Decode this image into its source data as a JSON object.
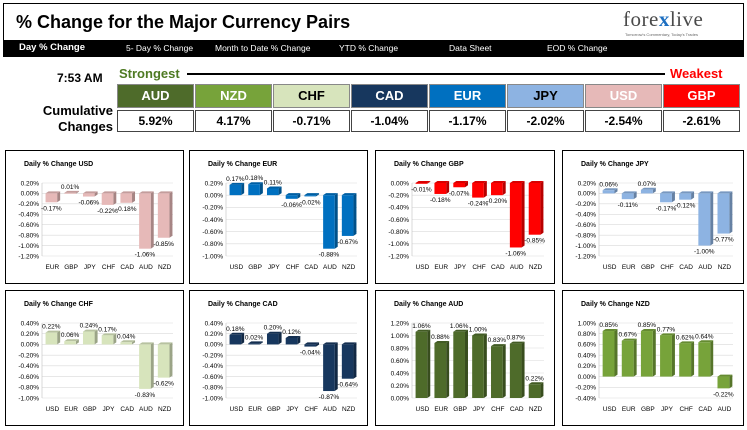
{
  "header": {
    "title": "% Change for the Major Currency Pairs",
    "logo": {
      "text_a": "fore",
      "text_x": "x",
      "text_b": "live",
      "tagline": "Tomorrow's Commentary, Today's Trades"
    }
  },
  "tabs": [
    {
      "label": "Day % Change",
      "active": true
    },
    {
      "label": "5- Day % Change"
    },
    {
      "label": "Month to Date % Change"
    },
    {
      "label": "YTD % Change"
    },
    {
      "label": "Data Sheet"
    },
    {
      "label": "EOD % Change"
    }
  ],
  "summary": {
    "time": "7:53 AM",
    "strongest_label": "Strongest",
    "weakest_label": "Weakest",
    "cumulative_line1": "Cumulative",
    "cumulative_line2": "Changes",
    "currencies": [
      {
        "code": "AUD",
        "value": "5.92%",
        "bg": "#4e6b2a",
        "fg": "#ffffff"
      },
      {
        "code": "NZD",
        "value": "4.17%",
        "bg": "#77a33a",
        "fg": "#ffffff"
      },
      {
        "code": "CHF",
        "value": "-0.71%",
        "bg": "#d7e4bc",
        "fg": "#000000"
      },
      {
        "code": "CAD",
        "value": "-1.04%",
        "bg": "#17375e",
        "fg": "#ffffff"
      },
      {
        "code": "EUR",
        "value": "-1.17%",
        "bg": "#0070c0",
        "fg": "#ffffff"
      },
      {
        "code": "JPY",
        "value": "-2.02%",
        "bg": "#8db3e2",
        "fg": "#000000"
      },
      {
        "code": "USD",
        "value": "-2.54%",
        "bg": "#e6b9b8",
        "fg": "#ffffff"
      },
      {
        "code": "GBP",
        "value": "-2.61%",
        "bg": "#ff0000",
        "fg": "#ffffff"
      }
    ]
  },
  "chart_data": [
    {
      "type": "bar",
      "title": "Daily % Change USD",
      "color": "#e6b9b8",
      "categories": [
        "EUR",
        "GBP",
        "JPY",
        "CHF",
        "CAD",
        "AUD",
        "NZD"
      ],
      "values": [
        -0.17,
        0.01,
        -0.06,
        -0.22,
        -0.18,
        -1.06,
        -0.85
      ],
      "labels": [
        "-0.17%",
        "0.01%",
        "-0.06%",
        "-0.22%",
        "-0.18%",
        "-1.06%",
        "-0.85%"
      ],
      "ticks": [
        "0.20%",
        "0.00%",
        "-0.20%",
        "-0.40%",
        "-0.60%",
        "-0.80%",
        "-1.00%",
        "-1.20%"
      ],
      "ylim": [
        -1.2,
        0.2
      ]
    },
    {
      "type": "bar",
      "title": "Daily % Change EUR",
      "color": "#0070c0",
      "categories": [
        "USD",
        "GBP",
        "JPY",
        "CHF",
        "CAD",
        "AUD",
        "NZD"
      ],
      "values": [
        0.17,
        0.18,
        0.11,
        -0.06,
        -0.02,
        -0.88,
        -0.67
      ],
      "labels": [
        "0.17%",
        "0.18%",
        "0.11%",
        "-0.06%",
        "-0.02%",
        "-0.88%",
        "-0.67%"
      ],
      "ticks": [
        "0.20%",
        "0.00%",
        "-0.20%",
        "-0.40%",
        "-0.60%",
        "-0.80%",
        "-1.00%"
      ],
      "ylim": [
        -1.0,
        0.2
      ]
    },
    {
      "type": "bar",
      "title": "Daily % Change GBP",
      "color": "#ff0000",
      "categories": [
        "USD",
        "EUR",
        "JPY",
        "CHF",
        "CAD",
        "AUD",
        "NZD"
      ],
      "values": [
        -0.01,
        -0.18,
        -0.07,
        -0.24,
        -0.2,
        -1.06,
        -0.85
      ],
      "labels": [
        "-0.01%",
        "-0.18%",
        "-0.07%",
        "-0.24%",
        "-0.20%",
        "-1.06%",
        "-0.85%"
      ],
      "ticks": [
        "0.00%",
        "-0.20%",
        "-0.40%",
        "-0.60%",
        "-0.80%",
        "-1.00%",
        "-1.20%"
      ],
      "ylim": [
        -1.2,
        0.0
      ]
    },
    {
      "type": "bar",
      "title": "Daily % Change JPY",
      "color": "#8db3e2",
      "categories": [
        "USD",
        "EUR",
        "GBP",
        "CHF",
        "CAD",
        "AUD",
        "NZD"
      ],
      "values": [
        0.06,
        -0.11,
        0.07,
        -0.17,
        -0.12,
        -1.0,
        -0.77
      ],
      "labels": [
        "0.06%",
        "-0.11%",
        "0.07%",
        "-0.17%",
        "-0.12%",
        "-1.00%",
        "-0.77%"
      ],
      "ticks": [
        "0.20%",
        "0.00%",
        "-0.20%",
        "-0.40%",
        "-0.60%",
        "-0.80%",
        "-1.00%",
        "-1.20%"
      ],
      "ylim": [
        -1.2,
        0.2
      ]
    },
    {
      "type": "bar",
      "title": "Daily % Change CHF",
      "color": "#d7e4bc",
      "categories": [
        "USD",
        "EUR",
        "GBP",
        "JPY",
        "CAD",
        "AUD",
        "NZD"
      ],
      "values": [
        0.22,
        0.06,
        0.24,
        0.17,
        0.04,
        -0.83,
        -0.62
      ],
      "labels": [
        "0.22%",
        "0.06%",
        "0.24%",
        "0.17%",
        "0.04%",
        "-0.83%",
        "-0.62%"
      ],
      "ticks": [
        "0.40%",
        "0.20%",
        "0.00%",
        "-0.20%",
        "-0.40%",
        "-0.60%",
        "-0.80%",
        "-1.00%"
      ],
      "ylim": [
        -1.0,
        0.4
      ]
    },
    {
      "type": "bar",
      "title": "Daily % Change CAD",
      "color": "#17375e",
      "categories": [
        "USD",
        "EUR",
        "GBP",
        "JPY",
        "CHF",
        "AUD",
        "NZD"
      ],
      "values": [
        0.18,
        0.02,
        0.2,
        0.12,
        -0.04,
        -0.87,
        -0.64
      ],
      "labels": [
        "0.18%",
        "0.02%",
        "0.20%",
        "0.12%",
        "-0.04%",
        "-0.87%",
        "-0.64%"
      ],
      "ticks": [
        "0.40%",
        "0.20%",
        "0.00%",
        "-0.20%",
        "-0.40%",
        "-0.60%",
        "-0.80%",
        "-1.00%"
      ],
      "ylim": [
        -1.0,
        0.4
      ]
    },
    {
      "type": "bar",
      "title": "Daily % Change AUD",
      "color": "#4e6b2a",
      "categories": [
        "USD",
        "EUR",
        "GBP",
        "JPY",
        "CHF",
        "CAD",
        "NZD"
      ],
      "values": [
        1.06,
        0.88,
        1.06,
        1.0,
        0.83,
        0.87,
        0.22
      ],
      "labels": [
        "1.06%",
        "0.88%",
        "1.06%",
        "1.00%",
        "0.83%",
        "0.87%",
        "0.22%"
      ],
      "ticks": [
        "1.20%",
        "1.00%",
        "0.80%",
        "0.60%",
        "0.40%",
        "0.20%",
        "0.00%"
      ],
      "ylim": [
        0.0,
        1.2
      ]
    },
    {
      "type": "bar",
      "title": "Daily % Change NZD",
      "color": "#77a33a",
      "categories": [
        "USD",
        "EUR",
        "GBP",
        "JPY",
        "CHF",
        "CAD",
        "AUD"
      ],
      "values": [
        0.85,
        0.67,
        0.85,
        0.77,
        0.62,
        0.64,
        -0.22
      ],
      "labels": [
        "0.85%",
        "0.67%",
        "0.85%",
        "0.77%",
        "0.62%",
        "0.64%",
        "-0.22%"
      ],
      "ticks": [
        "1.00%",
        "0.80%",
        "0.60%",
        "0.40%",
        "0.20%",
        "0.00%",
        "-0.20%",
        "-0.40%"
      ],
      "ylim": [
        -0.4,
        1.0
      ]
    }
  ]
}
